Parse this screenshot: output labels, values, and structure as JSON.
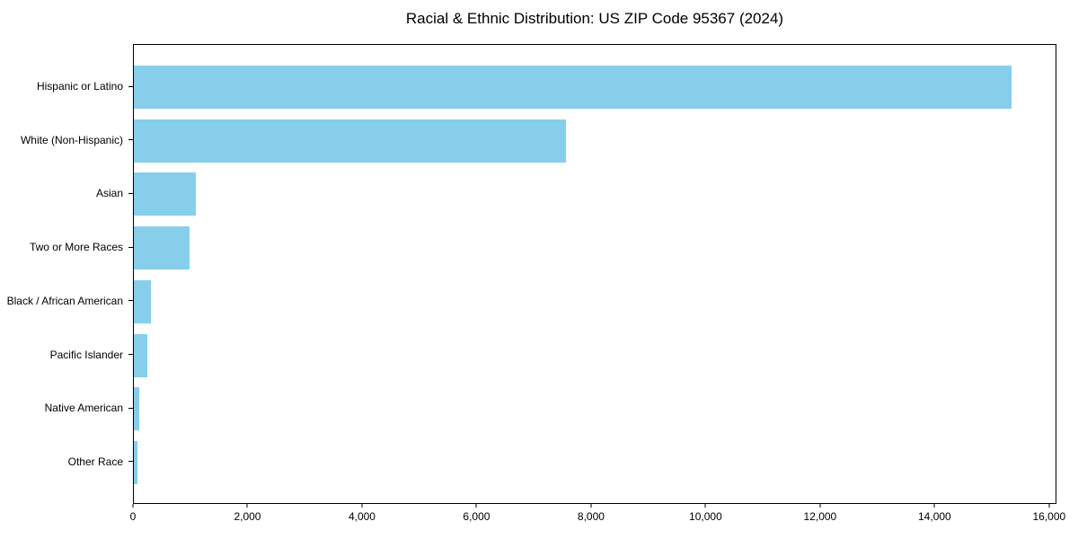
{
  "figure": {
    "background": "#ffffff"
  },
  "chart_data": {
    "type": "bar",
    "orientation": "horizontal",
    "title": "Racial & Ethnic Distribution: US ZIP Code 95367 (2024)",
    "categories": [
      "Hispanic or Latino",
      "White (Non-Hispanic)",
      "Asian",
      "Two or More Races",
      "Black / African American",
      "Pacific Islander",
      "Native American",
      "Other Race"
    ],
    "values": [
      15360,
      7560,
      1090,
      970,
      300,
      230,
      100,
      60
    ],
    "xlabel": "",
    "ylabel": "",
    "xlim": [
      0,
      16128
    ],
    "x_ticks": [
      0,
      2000,
      4000,
      6000,
      8000,
      10000,
      12000,
      14000,
      16000
    ],
    "x_tick_labels": [
      "0",
      "2,000",
      "4,000",
      "6,000",
      "8,000",
      "10,000",
      "12,000",
      "14,000",
      "16,000"
    ],
    "grid": false,
    "legend": false,
    "bar_color": "#87CEEB",
    "axis_color": "#000000",
    "text_color": "#000000"
  }
}
